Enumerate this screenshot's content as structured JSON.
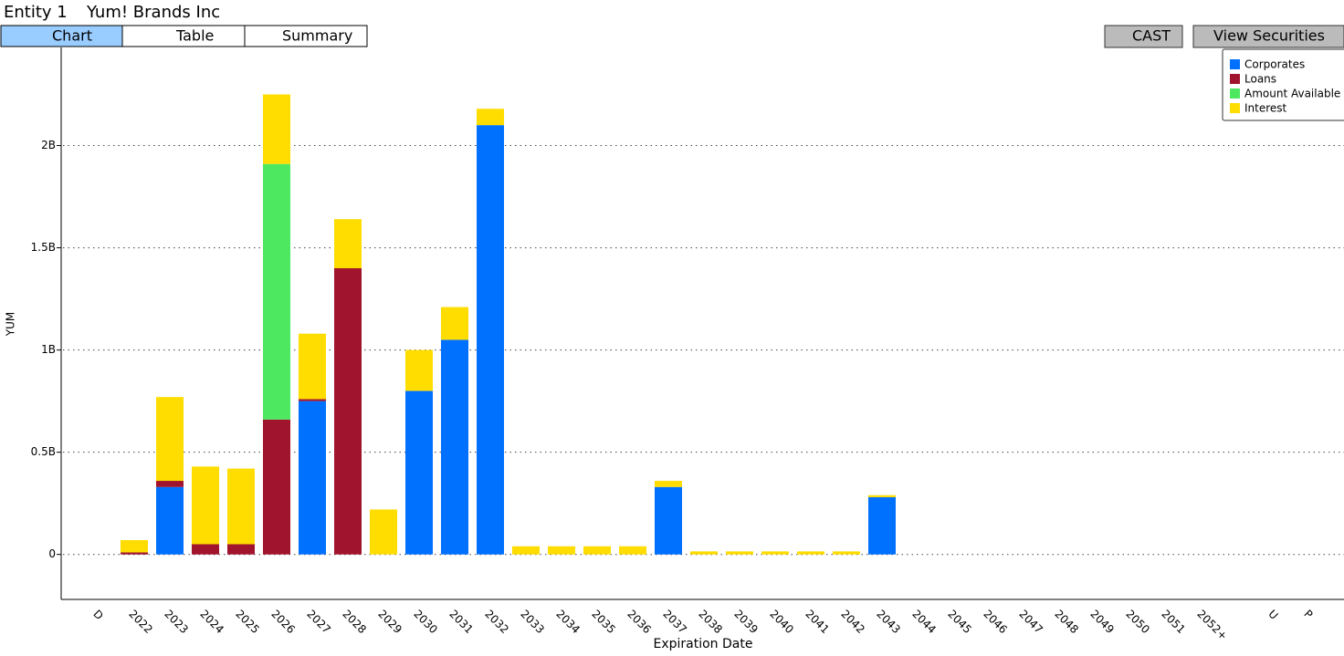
{
  "header": {
    "entity": "Entity 1",
    "name": "Yum! Brands Inc",
    "tabs": [
      "Chart",
      "Table",
      "Summary"
    ],
    "buttons": [
      "CAST",
      "View Securities"
    ]
  },
  "chart_data": {
    "type": "bar",
    "stacked": true,
    "ylabel": "YUM",
    "xlabel": "Expiration Date",
    "categories": [
      "D",
      "2022",
      "2023",
      "2024",
      "2025",
      "2026",
      "2027",
      "2028",
      "2029",
      "2030",
      "2031",
      "2032",
      "2033",
      "2034",
      "2035",
      "2036",
      "2037",
      "2038",
      "2039",
      "2040",
      "2041",
      "2042",
      "2043",
      "2044",
      "2045",
      "2046",
      "2047",
      "2048",
      "2049",
      "2050",
      "2051",
      "2052+",
      null,
      "U",
      "P"
    ],
    "series": [
      {
        "name": "Corporates",
        "color": "#0070ff",
        "values": [
          null,
          null,
          0.33,
          null,
          null,
          null,
          0.75,
          null,
          null,
          0.8,
          1.05,
          2.1,
          null,
          null,
          null,
          null,
          0.33,
          null,
          null,
          null,
          null,
          null,
          0.28,
          null,
          null,
          null,
          null,
          null,
          null,
          null,
          null,
          null,
          null,
          null,
          null
        ]
      },
      {
        "name": "Loans",
        "color": "#a0142d",
        "values": [
          null,
          0.01,
          0.03,
          0.05,
          0.05,
          0.66,
          0.01,
          1.4,
          null,
          null,
          null,
          null,
          null,
          null,
          null,
          null,
          null,
          null,
          null,
          null,
          null,
          null,
          null,
          null,
          null,
          null,
          null,
          null,
          null,
          null,
          null,
          null,
          null,
          null,
          null
        ]
      },
      {
        "name": "Amount Available",
        "color": "#4ee860",
        "values": [
          null,
          null,
          null,
          null,
          null,
          1.25,
          null,
          null,
          null,
          null,
          null,
          null,
          null,
          null,
          null,
          null,
          null,
          null,
          null,
          null,
          null,
          null,
          null,
          null,
          null,
          null,
          null,
          null,
          null,
          null,
          null,
          null,
          null,
          null,
          null
        ]
      },
      {
        "name": "Interest",
        "color": "#ffdd00",
        "values": [
          null,
          0.06,
          0.41,
          0.38,
          0.37,
          0.34,
          0.32,
          0.24,
          0.22,
          0.2,
          0.16,
          0.08,
          0.04,
          0.04,
          0.04,
          0.04,
          0.03,
          0.015,
          0.015,
          0.015,
          0.015,
          0.015,
          0.01,
          null,
          null,
          null,
          null,
          null,
          null,
          null,
          null,
          null,
          null,
          null,
          null
        ]
      }
    ],
    "ylim": [
      -0.22,
      2.48
    ],
    "yticks": [
      0,
      {
        "value": 0.5,
        "label": "0.5B"
      },
      {
        "value": 1,
        "label": "1B"
      },
      {
        "value": 1.5,
        "label": "1.5B"
      },
      {
        "value": 2,
        "label": "2B"
      }
    ],
    "grid": true,
    "legend": "top-right"
  }
}
